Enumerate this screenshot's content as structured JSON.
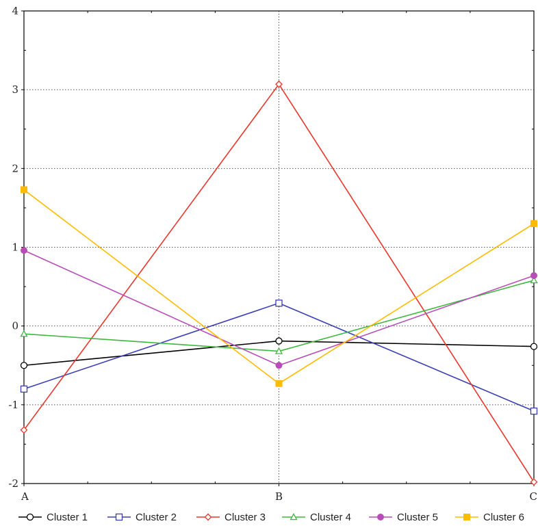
{
  "chart_data": {
    "type": "line",
    "title": "",
    "xlabel": "",
    "ylabel": "",
    "categories": [
      "A",
      "B",
      "C"
    ],
    "ylim": [
      -2,
      4
    ],
    "yticks": [
      -2,
      -1,
      0,
      1,
      2,
      3,
      4
    ],
    "grid": true,
    "legend_position": "bottom",
    "series": [
      {
        "name": "Cluster 1",
        "values": [
          -0.5,
          -0.19,
          -0.26
        ],
        "color": "#000000",
        "marker": "circle-open"
      },
      {
        "name": "Cluster 2",
        "values": [
          -0.8,
          0.29,
          -1.08
        ],
        "color": "#3a3fb4",
        "marker": "square-open"
      },
      {
        "name": "Cluster 3",
        "values": [
          -1.32,
          3.07,
          -1.98
        ],
        "color": "#e8352a",
        "marker": "diamond-open"
      },
      {
        "name": "Cluster 4",
        "values": [
          -0.1,
          -0.32,
          0.58
        ],
        "color": "#3db83d",
        "marker": "triangle-open"
      },
      {
        "name": "Cluster 5",
        "values": [
          0.96,
          -0.5,
          0.64
        ],
        "color": "#b84cb8",
        "marker": "circle-filled"
      },
      {
        "name": "Cluster 6",
        "values": [
          1.73,
          -0.73,
          1.3
        ],
        "color": "#ffbb00",
        "marker": "square-filled"
      }
    ]
  }
}
